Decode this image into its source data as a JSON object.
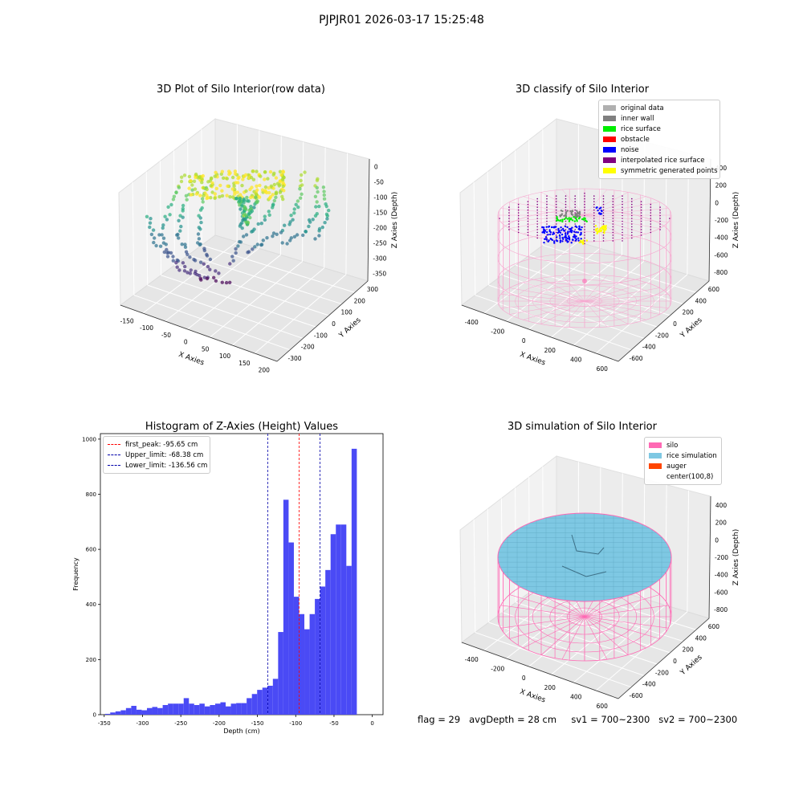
{
  "title": "PJPJR01 2026-03-17 15:25:48",
  "panels": {
    "raw": {
      "title": "3D Plot of Silo Interior(row data)",
      "xlabel": "X Axies",
      "ylabel": "Y Axies",
      "zlabel": "Z Axies (Depth)",
      "xticks": [
        "-150",
        "-100",
        "-50",
        "0",
        "50",
        "100",
        "150",
        "200"
      ],
      "yticks": [
        "-300",
        "-200",
        "-100",
        "0",
        "100",
        "200",
        "300"
      ],
      "zticks": [
        "0",
        "-50",
        "-100",
        "-150",
        "-200",
        "-250",
        "-300",
        "-350"
      ]
    },
    "classify": {
      "title": "3D classify of Silo Interior",
      "xlabel": "X Axies",
      "ylabel": "Y Axies",
      "zlabel": "Z Axies (Depth)",
      "xticks": [
        "-400",
        "-200",
        "0",
        "200",
        "400",
        "600"
      ],
      "yticks": [
        "-600",
        "-400",
        "-200",
        "0",
        "200",
        "400",
        "600"
      ],
      "zticks": [
        "400",
        "200",
        "0",
        "-200",
        "-400",
        "-600",
        "-800"
      ],
      "legend": [
        {
          "label": "original data",
          "color": "#b0b0b0"
        },
        {
          "label": "inner wall",
          "color": "#808080"
        },
        {
          "label": "rice surface",
          "color": "#00ee00"
        },
        {
          "label": "obstacle",
          "color": "#ff0000"
        },
        {
          "label": "noise",
          "color": "#0000ff"
        },
        {
          "label": "interpolated rice surface",
          "color": "#800080"
        },
        {
          "label": "symmetric generated points",
          "color": "#ffff00"
        }
      ]
    },
    "simulation": {
      "title": "3D simulation of Silo Interior",
      "xlabel": "X Axies",
      "ylabel": "Y Axies",
      "zlabel": "Z Axies (Depth)",
      "xticks": [
        "-400",
        "-200",
        "0",
        "200",
        "400",
        "600"
      ],
      "yticks": [
        "-600",
        "-400",
        "-200",
        "0",
        "200",
        "400",
        "600"
      ],
      "zticks": [
        "400",
        "200",
        "0",
        "-200",
        "-400",
        "-600",
        "-800"
      ],
      "legend": [
        {
          "label": "silo",
          "color": "#ff69b4"
        },
        {
          "label": "rice simulation",
          "color": "#7ec8e3"
        },
        {
          "label": "auger",
          "color": "#ff4500"
        },
        {
          "label": "center(100,8)",
          "color": "#ffffff"
        }
      ]
    }
  },
  "chart_data": {
    "type": "bar",
    "title": "Histogram of Z-Axies (Height) Values",
    "xlabel": "Depth (cm)",
    "ylabel": "Frequency",
    "xlim": [
      -355,
      14
    ],
    "ylim": [
      0,
      1020
    ],
    "xticks": [
      -350,
      -300,
      -250,
      -200,
      -150,
      -100,
      -50,
      0
    ],
    "yticks": [
      0,
      200,
      400,
      600,
      800,
      1000
    ],
    "bar_color": "#4a4af5",
    "bin_width": 6.85,
    "bin_start": -349,
    "values": [
      3,
      8,
      12,
      16,
      24,
      32,
      18,
      16,
      24,
      28,
      24,
      35,
      40,
      40,
      40,
      60,
      40,
      35,
      40,
      30,
      35,
      40,
      45,
      30,
      40,
      42,
      42,
      60,
      75,
      90,
      98,
      105,
      130,
      300,
      780,
      625,
      428,
      365,
      310,
      365,
      420,
      465,
      525,
      655,
      690,
      690,
      540,
      965
    ],
    "vlines": [
      {
        "label": "first_peak: -95.65 cm",
        "x": -95.65,
        "color": "#ff0000"
      },
      {
        "label": "Upper_limit: -68.38 cm",
        "x": -68.38,
        "color": "#0000aa"
      },
      {
        "label": "Lower_limit: -136.56 cm",
        "x": -136.56,
        "color": "#0000aa"
      }
    ]
  },
  "status": "flag = 29   avgDepth = 28 cm     sv1 = 700~2300   sv2 = 700~2300"
}
